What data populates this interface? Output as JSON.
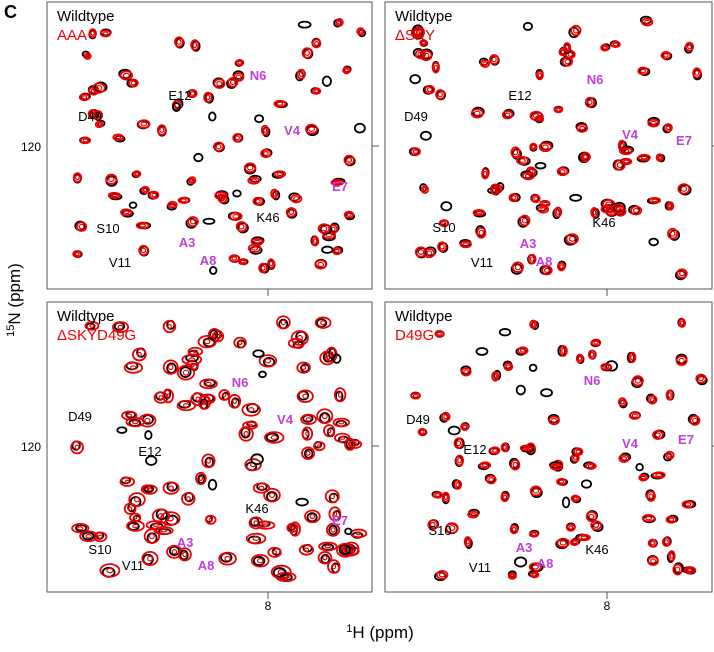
{
  "figure_label": "C",
  "y_axis_label": {
    "isotope": "15",
    "rest": "N (ppm)"
  },
  "x_axis_label": {
    "isotope": "1",
    "rest": "H (ppm)"
  },
  "y_tick": "120",
  "x_tick": "8",
  "panels": [
    {
      "legend": [
        "Wildtype",
        "AAA"
      ],
      "annotations": [
        "N6",
        "D49",
        "E12",
        "V4",
        "E7",
        "K46",
        "S10",
        "A3",
        "V11",
        "A8"
      ]
    },
    {
      "legend": [
        "Wildtype",
        "ΔSKY"
      ],
      "annotations": [
        "N6",
        "D49",
        "E12",
        "V4",
        "E7",
        "K46",
        "S10",
        "A3",
        "V11",
        "A8"
      ]
    },
    {
      "legend": [
        "Wildtype",
        "ΔSKYD49G"
      ],
      "annotations": [
        "N6",
        "D49",
        "E12",
        "V4",
        "E7",
        "K46",
        "S10",
        "A3",
        "V11",
        "A8"
      ]
    },
    {
      "legend": [
        "Wildtype",
        "D49G"
      ],
      "annotations": [
        "N6",
        "D49",
        "E12",
        "V4",
        "E7",
        "K46",
        "S10",
        "A3",
        "V11",
        "A8"
      ]
    }
  ]
}
